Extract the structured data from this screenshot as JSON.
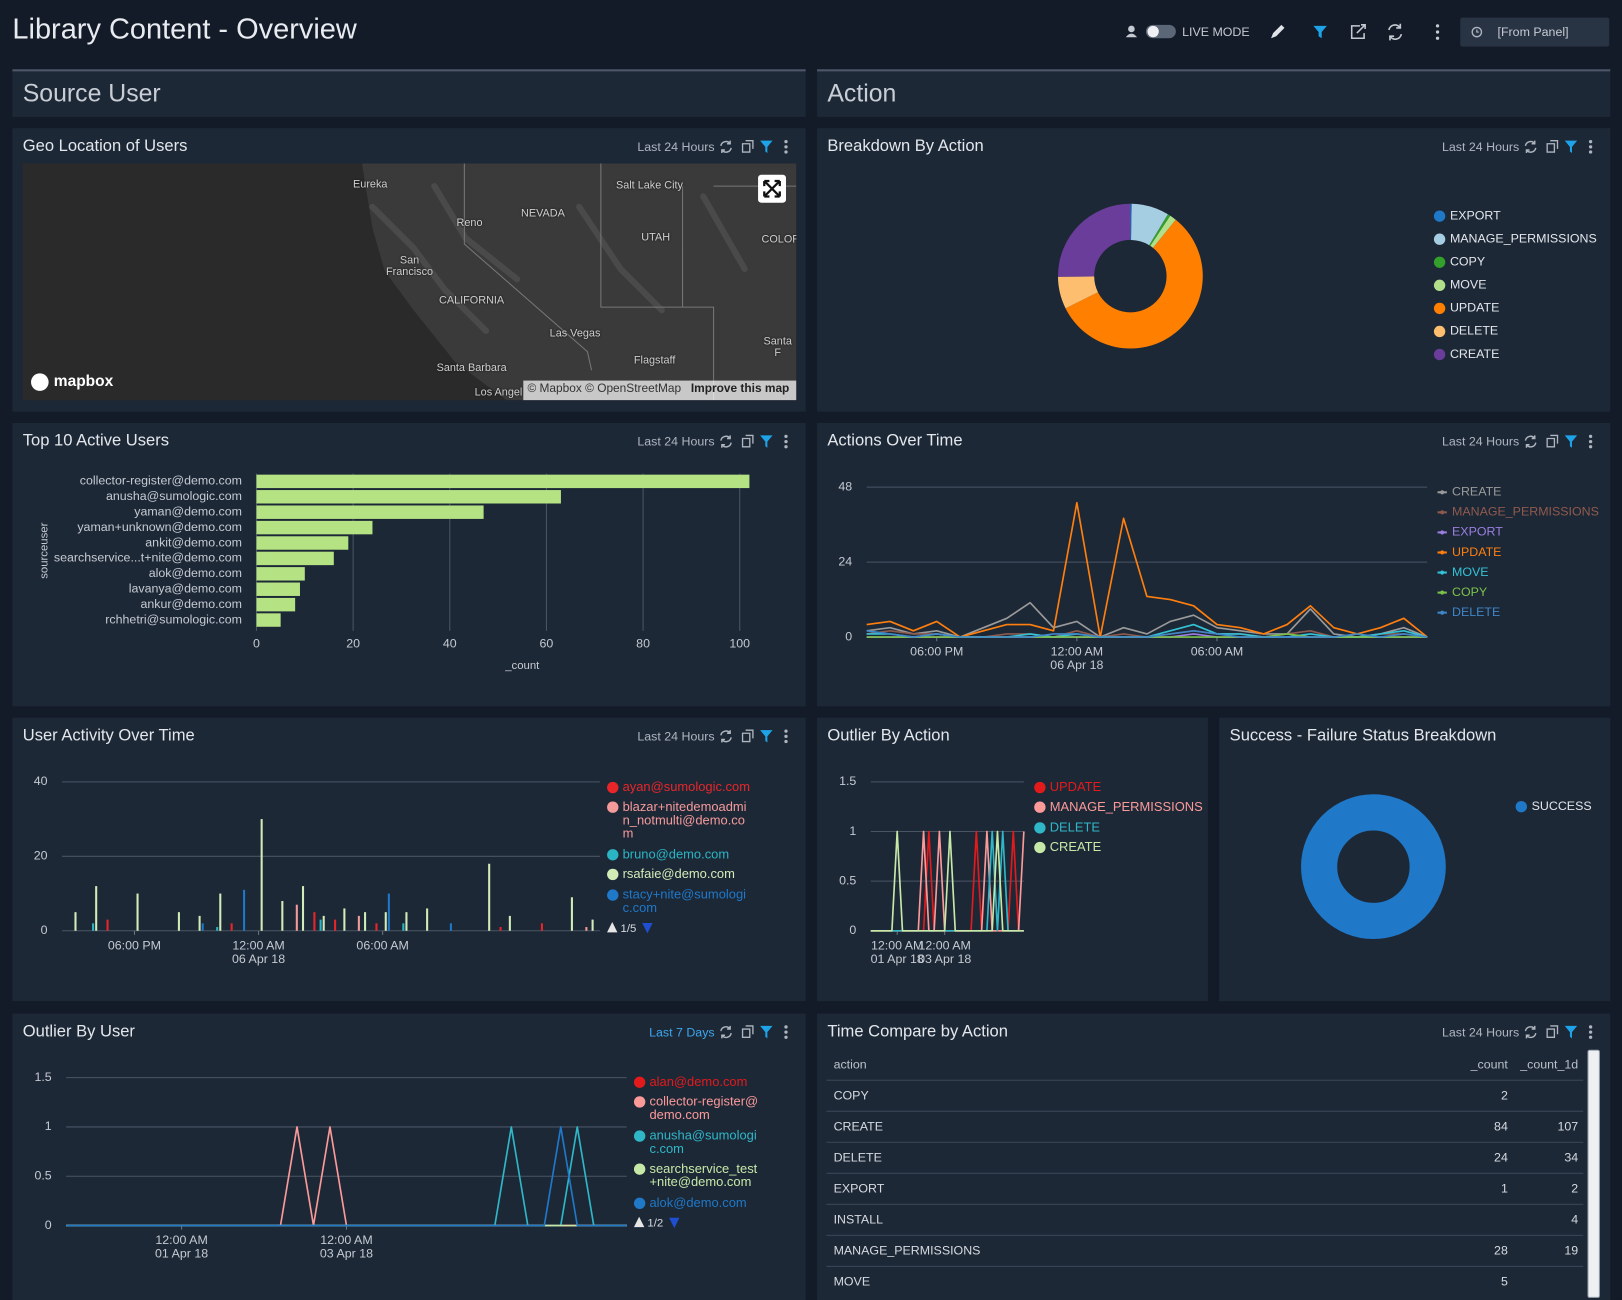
{
  "header": {
    "title": "Library Content - Overview",
    "live_mode": "LIVE MODE",
    "time_range": "[From Panel]"
  },
  "sections": [
    "Source User",
    "Action"
  ],
  "map": {
    "title": "Geo Location of Users",
    "time_range": "Last 24 Hours",
    "labels": [
      "Eureka",
      "Reno",
      "NEVADA",
      "Salt Lake City",
      "UTAH",
      "San\nFrancisco",
      "CALIFORNIA",
      "Las Vegas",
      "Flagstaff",
      "Santa Barbara",
      "Los Angel",
      "COLOR",
      "Santa F"
    ],
    "logo": "mapbox",
    "attribution": "© Mapbox © OpenStreetMap",
    "improve": "Improve this map"
  },
  "chart_data": [
    {
      "type": "pie",
      "title": "Breakdown By Action",
      "time_range": "Last 24 Hours",
      "categories": [
        "EXPORT",
        "MANAGE_PERMISSIONS",
        "COPY",
        "MOVE",
        "UPDATE",
        "DELETE",
        "CREATE"
      ],
      "values": [
        1,
        28,
        2,
        5,
        190,
        24,
        84
      ],
      "colors": [
        "#1f78c8",
        "#a6cee3",
        "#33a02c",
        "#b2df8a",
        "#ff7f00",
        "#fdbf6f",
        "#6a3d9a"
      ]
    },
    {
      "type": "bar",
      "orientation": "horizontal",
      "title": "Top 10 Active Users",
      "time_range": "Last 24 Hours",
      "categories": [
        "collector-register@demo.com",
        "anusha@sumologic.com",
        "yaman@demo.com",
        "yaman+unknown@demo.com",
        "ankit@demo.com",
        "searchservice...t+nite@demo.com",
        "alok@demo.com",
        "lavanya@demo.com",
        "ankur@demo.com",
        "rchhetri@sumologic.com"
      ],
      "values": [
        102,
        63,
        47,
        24,
        19,
        16,
        10,
        9,
        8,
        5
      ],
      "color": "#b5e384",
      "xlim": [
        0,
        110
      ],
      "xticks": [
        0,
        20,
        40,
        60,
        80,
        100
      ],
      "x_label": "_count",
      "y_label": "sourceuser",
      "grid": true
    },
    {
      "type": "line",
      "title": "Actions Over Time",
      "time_range": "Last 24 Hours",
      "legend_marker": "dash",
      "categories": [
        null,
        null,
        null,
        "06:00 PM",
        null,
        null,
        null,
        null,
        null,
        "12:00 AM\n06 Apr 18",
        null,
        null,
        null,
        null,
        null,
        "06:00 AM",
        null,
        null,
        null,
        null,
        null,
        null,
        null,
        null,
        null
      ],
      "ylim": [
        0,
        48
      ],
      "yticks": [
        0,
        24,
        48
      ],
      "grid": true,
      "series": [
        {
          "name": "CREATE",
          "color": "#9a9a9a",
          "values": [
            2,
            3,
            1,
            2,
            0,
            3,
            6,
            11,
            3,
            5,
            0,
            3,
            1,
            5,
            7,
            3,
            2,
            1,
            1,
            9,
            1,
            0,
            1,
            3,
            0
          ]
        },
        {
          "name": "MANAGE_PERMISSIONS",
          "color": "#8f5a4e",
          "values": [
            1,
            2,
            1,
            1,
            0,
            0,
            1,
            1,
            0,
            2,
            0,
            1,
            0,
            1,
            2,
            1,
            1,
            0,
            1,
            2,
            0,
            0,
            1,
            1,
            0
          ]
        },
        {
          "name": "EXPORT",
          "color": "#9b7fe0",
          "values": [
            0,
            0,
            0,
            0,
            0,
            0,
            0,
            0,
            0,
            0,
            0,
            0,
            0,
            0,
            1,
            0,
            0,
            0,
            0,
            0,
            0,
            0,
            0,
            0,
            0
          ]
        },
        {
          "name": "UPDATE",
          "color": "#ff7f0e",
          "values": [
            4,
            5,
            2,
            5,
            0,
            2,
            4,
            4,
            2,
            43,
            0,
            38,
            13,
            12,
            10,
            4,
            3,
            1,
            4,
            10,
            3,
            1,
            3,
            6,
            0
          ]
        },
        {
          "name": "MOVE",
          "color": "#33c3d6",
          "values": [
            1,
            1,
            0,
            1,
            0,
            0,
            0,
            1,
            0,
            1,
            0,
            0,
            0,
            2,
            4,
            1,
            1,
            0,
            0,
            1,
            0,
            0,
            1,
            2,
            0
          ]
        },
        {
          "name": "COPY",
          "color": "#7cc24a",
          "values": [
            0,
            0,
            0,
            0,
            0,
            0,
            0,
            0,
            0,
            0,
            0,
            0,
            0,
            0,
            0,
            0,
            0,
            0,
            1,
            0,
            0,
            0,
            0,
            0,
            0
          ]
        },
        {
          "name": "DELETE",
          "color": "#3f86c8",
          "values": [
            2,
            1,
            0,
            1,
            0,
            0,
            0,
            0,
            1,
            1,
            0,
            0,
            0,
            1,
            2,
            1,
            0,
            0,
            0,
            0,
            0,
            1,
            0,
            1,
            0
          ]
        }
      ]
    },
    {
      "type": "bar",
      "orientation": "vertical",
      "title": "User Activity Over Time",
      "time_range": "Last 24 Hours",
      "legend_marker": "dot",
      "legend_page": "1/5",
      "categories": [
        null,
        null,
        null,
        "06:00 PM",
        null,
        null,
        null,
        null,
        null,
        "12:00 AM\n06 Apr 18",
        null,
        null,
        null,
        null,
        null,
        "06:00 AM",
        null,
        null,
        null,
        null,
        null,
        null,
        null,
        null,
        null,
        null
      ],
      "ylim": [
        0,
        40
      ],
      "yticks": [
        0,
        20,
        40
      ],
      "grid": true,
      "series": [
        {
          "name": "ayan@sumologic.com",
          "color": "#e8262a",
          "values": [
            0,
            0,
            3,
            0,
            0,
            0,
            0,
            0,
            2,
            0,
            0,
            0,
            5,
            3,
            0,
            2,
            0,
            0,
            0,
            0,
            0,
            1,
            0,
            2,
            0,
            0
          ]
        },
        {
          "name": "blazar+nitedemoadmin_notmulti@demo.com",
          "color": "#f59a9a",
          "values": [
            0,
            0,
            0,
            0,
            0,
            0,
            0,
            0,
            0,
            0,
            0,
            7,
            0,
            0,
            4,
            0,
            0,
            0,
            0,
            0,
            0,
            0,
            0,
            0,
            0,
            1
          ]
        },
        {
          "name": "bruno@demo.com",
          "color": "#2bb5c4",
          "values": [
            0,
            2,
            0,
            0,
            0,
            0,
            0,
            1,
            0,
            0,
            0,
            0,
            3,
            0,
            0,
            0,
            2,
            0,
            0,
            0,
            0,
            0,
            0,
            0,
            0,
            0
          ]
        },
        {
          "name": "rsafaie@demo.com",
          "color": "#d2ecb8",
          "values": [
            5,
            12,
            0,
            10,
            0,
            5,
            4,
            10,
            0,
            30,
            8,
            12,
            4,
            6,
            5,
            5,
            5,
            6,
            0,
            0,
            18,
            4,
            0,
            0,
            9,
            3
          ]
        },
        {
          "name": "stacy+nite@sumologic.com",
          "color": "#1f78c8",
          "values": [
            0,
            0,
            0,
            0,
            0,
            0,
            2,
            0,
            11,
            0,
            0,
            0,
            0,
            0,
            0,
            10,
            0,
            0,
            2,
            0,
            0,
            0,
            0,
            0,
            0,
            0
          ]
        }
      ]
    },
    {
      "type": "line",
      "title": "Outlier By Action",
      "legend_marker": "dot",
      "categories": [
        null,
        null,
        null,
        null,
        null,
        "12:00 AM\n01 Apr 18",
        null,
        null,
        null,
        null,
        null,
        null,
        null,
        null,
        "12:00 AM\n03 Apr 18",
        null,
        null,
        null,
        null,
        null,
        null,
        null,
        null,
        null,
        null,
        null,
        null,
        null,
        null,
        null
      ],
      "ylim": [
        0,
        1.5
      ],
      "yticks": [
        0,
        0.5,
        1,
        1.5
      ],
      "grid": true,
      "series": [
        {
          "name": "UPDATE",
          "color": "#e31a1c",
          "values": [
            0,
            0,
            0,
            0,
            0,
            0,
            0,
            0,
            0,
            0,
            0,
            1,
            0,
            0,
            0,
            0,
            0,
            0,
            0,
            0,
            1,
            0,
            0,
            0,
            0,
            0,
            0,
            1,
            0,
            0
          ]
        },
        {
          "name": "MANAGE_PERMISSIONS",
          "color": "#fb9a99",
          "values": [
            0,
            0,
            0,
            0,
            0,
            0,
            0,
            0,
            0,
            0,
            1,
            0,
            0,
            1,
            0,
            0,
            0,
            0,
            0,
            0,
            0,
            0,
            1,
            0,
            0,
            0,
            0,
            0,
            0,
            1
          ]
        },
        {
          "name": "DELETE",
          "color": "#2fb7c8",
          "values": [
            0,
            0,
            0,
            0,
            0,
            0,
            0,
            0,
            0,
            0,
            0,
            0,
            0,
            0,
            0,
            0,
            0,
            0,
            0,
            0,
            0,
            0,
            0,
            1,
            0,
            1,
            0,
            0,
            0,
            0
          ]
        },
        {
          "name": "CREATE",
          "color": "#c7e9a8",
          "values": [
            0,
            0,
            0,
            0,
            0,
            1,
            0,
            0,
            0,
            0,
            0,
            0,
            0,
            0,
            0,
            1,
            0,
            0,
            0,
            0,
            0,
            0,
            0,
            0,
            1,
            0,
            0,
            0,
            0,
            0
          ]
        }
      ]
    },
    {
      "type": "pie",
      "title": "Success - Failure Status Breakdown",
      "categories": [
        "SUCCESS"
      ],
      "values": [
        100
      ],
      "colors": [
        "#1f78c8"
      ]
    },
    {
      "type": "line",
      "title": "Outlier By User",
      "time_range": "Last 7 Days",
      "legend_marker": "dot",
      "legend_page": "1/2",
      "categories": [
        null,
        null,
        null,
        null,
        null,
        null,
        null,
        "12:00 AM\n01 Apr 18",
        null,
        null,
        null,
        null,
        null,
        null,
        null,
        null,
        null,
        "12:00 AM\n03 Apr 18",
        null,
        null,
        null,
        null,
        null,
        null,
        null,
        null,
        null,
        null,
        null,
        null,
        null,
        null,
        null,
        null,
        null
      ],
      "ylim": [
        0,
        1.5
      ],
      "yticks": [
        0,
        0.5,
        1,
        1.5
      ],
      "grid": true,
      "series": [
        {
          "name": "alan@demo.com",
          "color": "#e31a1c",
          "values": [
            0,
            0,
            0,
            0,
            0,
            0,
            0,
            0,
            0,
            0,
            0,
            0,
            0,
            0,
            0,
            0,
            0,
            0,
            0,
            0,
            0,
            0,
            0,
            0,
            0,
            0,
            0,
            0,
            0,
            0,
            0,
            0,
            0,
            0,
            0
          ]
        },
        {
          "name": "collector-register@demo.com",
          "color": "#fb9a99",
          "values": [
            0,
            0,
            0,
            0,
            0,
            0,
            0,
            0,
            0,
            0,
            0,
            0,
            0,
            0,
            1,
            0,
            1,
            0,
            0,
            0,
            0,
            0,
            0,
            0,
            0,
            0,
            0,
            0,
            0,
            0,
            0,
            0,
            0,
            0,
            0
          ]
        },
        {
          "name": "anusha@sumologic.com",
          "color": "#2fb7c8",
          "values": [
            0,
            0,
            0,
            0,
            0,
            0,
            0,
            0,
            0,
            0,
            0,
            0,
            0,
            0,
            0,
            0,
            0,
            0,
            0,
            0,
            0,
            0,
            0,
            0,
            0,
            0,
            0,
            1,
            0,
            0,
            0,
            1,
            0,
            0,
            0
          ]
        },
        {
          "name": "searchservice_test+nite@demo.com",
          "color": "#c7e9a8",
          "values": [
            0,
            0,
            0,
            0,
            0,
            0,
            0,
            0,
            0,
            0,
            0,
            0,
            0,
            0,
            0,
            0,
            0,
            0,
            0,
            0,
            0,
            0,
            0,
            0,
            0,
            0,
            0,
            0,
            0,
            0,
            0,
            0,
            0,
            0,
            0
          ]
        },
        {
          "name": "alok@demo.com",
          "color": "#1f78c8",
          "values": [
            0,
            0,
            0,
            0,
            0,
            0,
            0,
            0,
            0,
            0,
            0,
            0,
            0,
            0,
            0,
            0,
            0,
            0,
            0,
            0,
            0,
            0,
            0,
            0,
            0,
            0,
            0,
            0,
            0,
            0,
            1,
            0,
            0,
            0,
            0
          ]
        }
      ]
    }
  ],
  "table": {
    "title": "Time Compare by Action",
    "time_range": "Last 24 Hours",
    "columns": [
      "action",
      "_count",
      "_count_1d"
    ],
    "rows": [
      [
        "COPY",
        2,
        null
      ],
      [
        "CREATE",
        84,
        107
      ],
      [
        "DELETE",
        24,
        34
      ],
      [
        "EXPORT",
        1,
        2
      ],
      [
        "INSTALL",
        null,
        4
      ],
      [
        "MANAGE_PERMISSIONS",
        28,
        19
      ],
      [
        "MOVE",
        5,
        null
      ]
    ]
  }
}
